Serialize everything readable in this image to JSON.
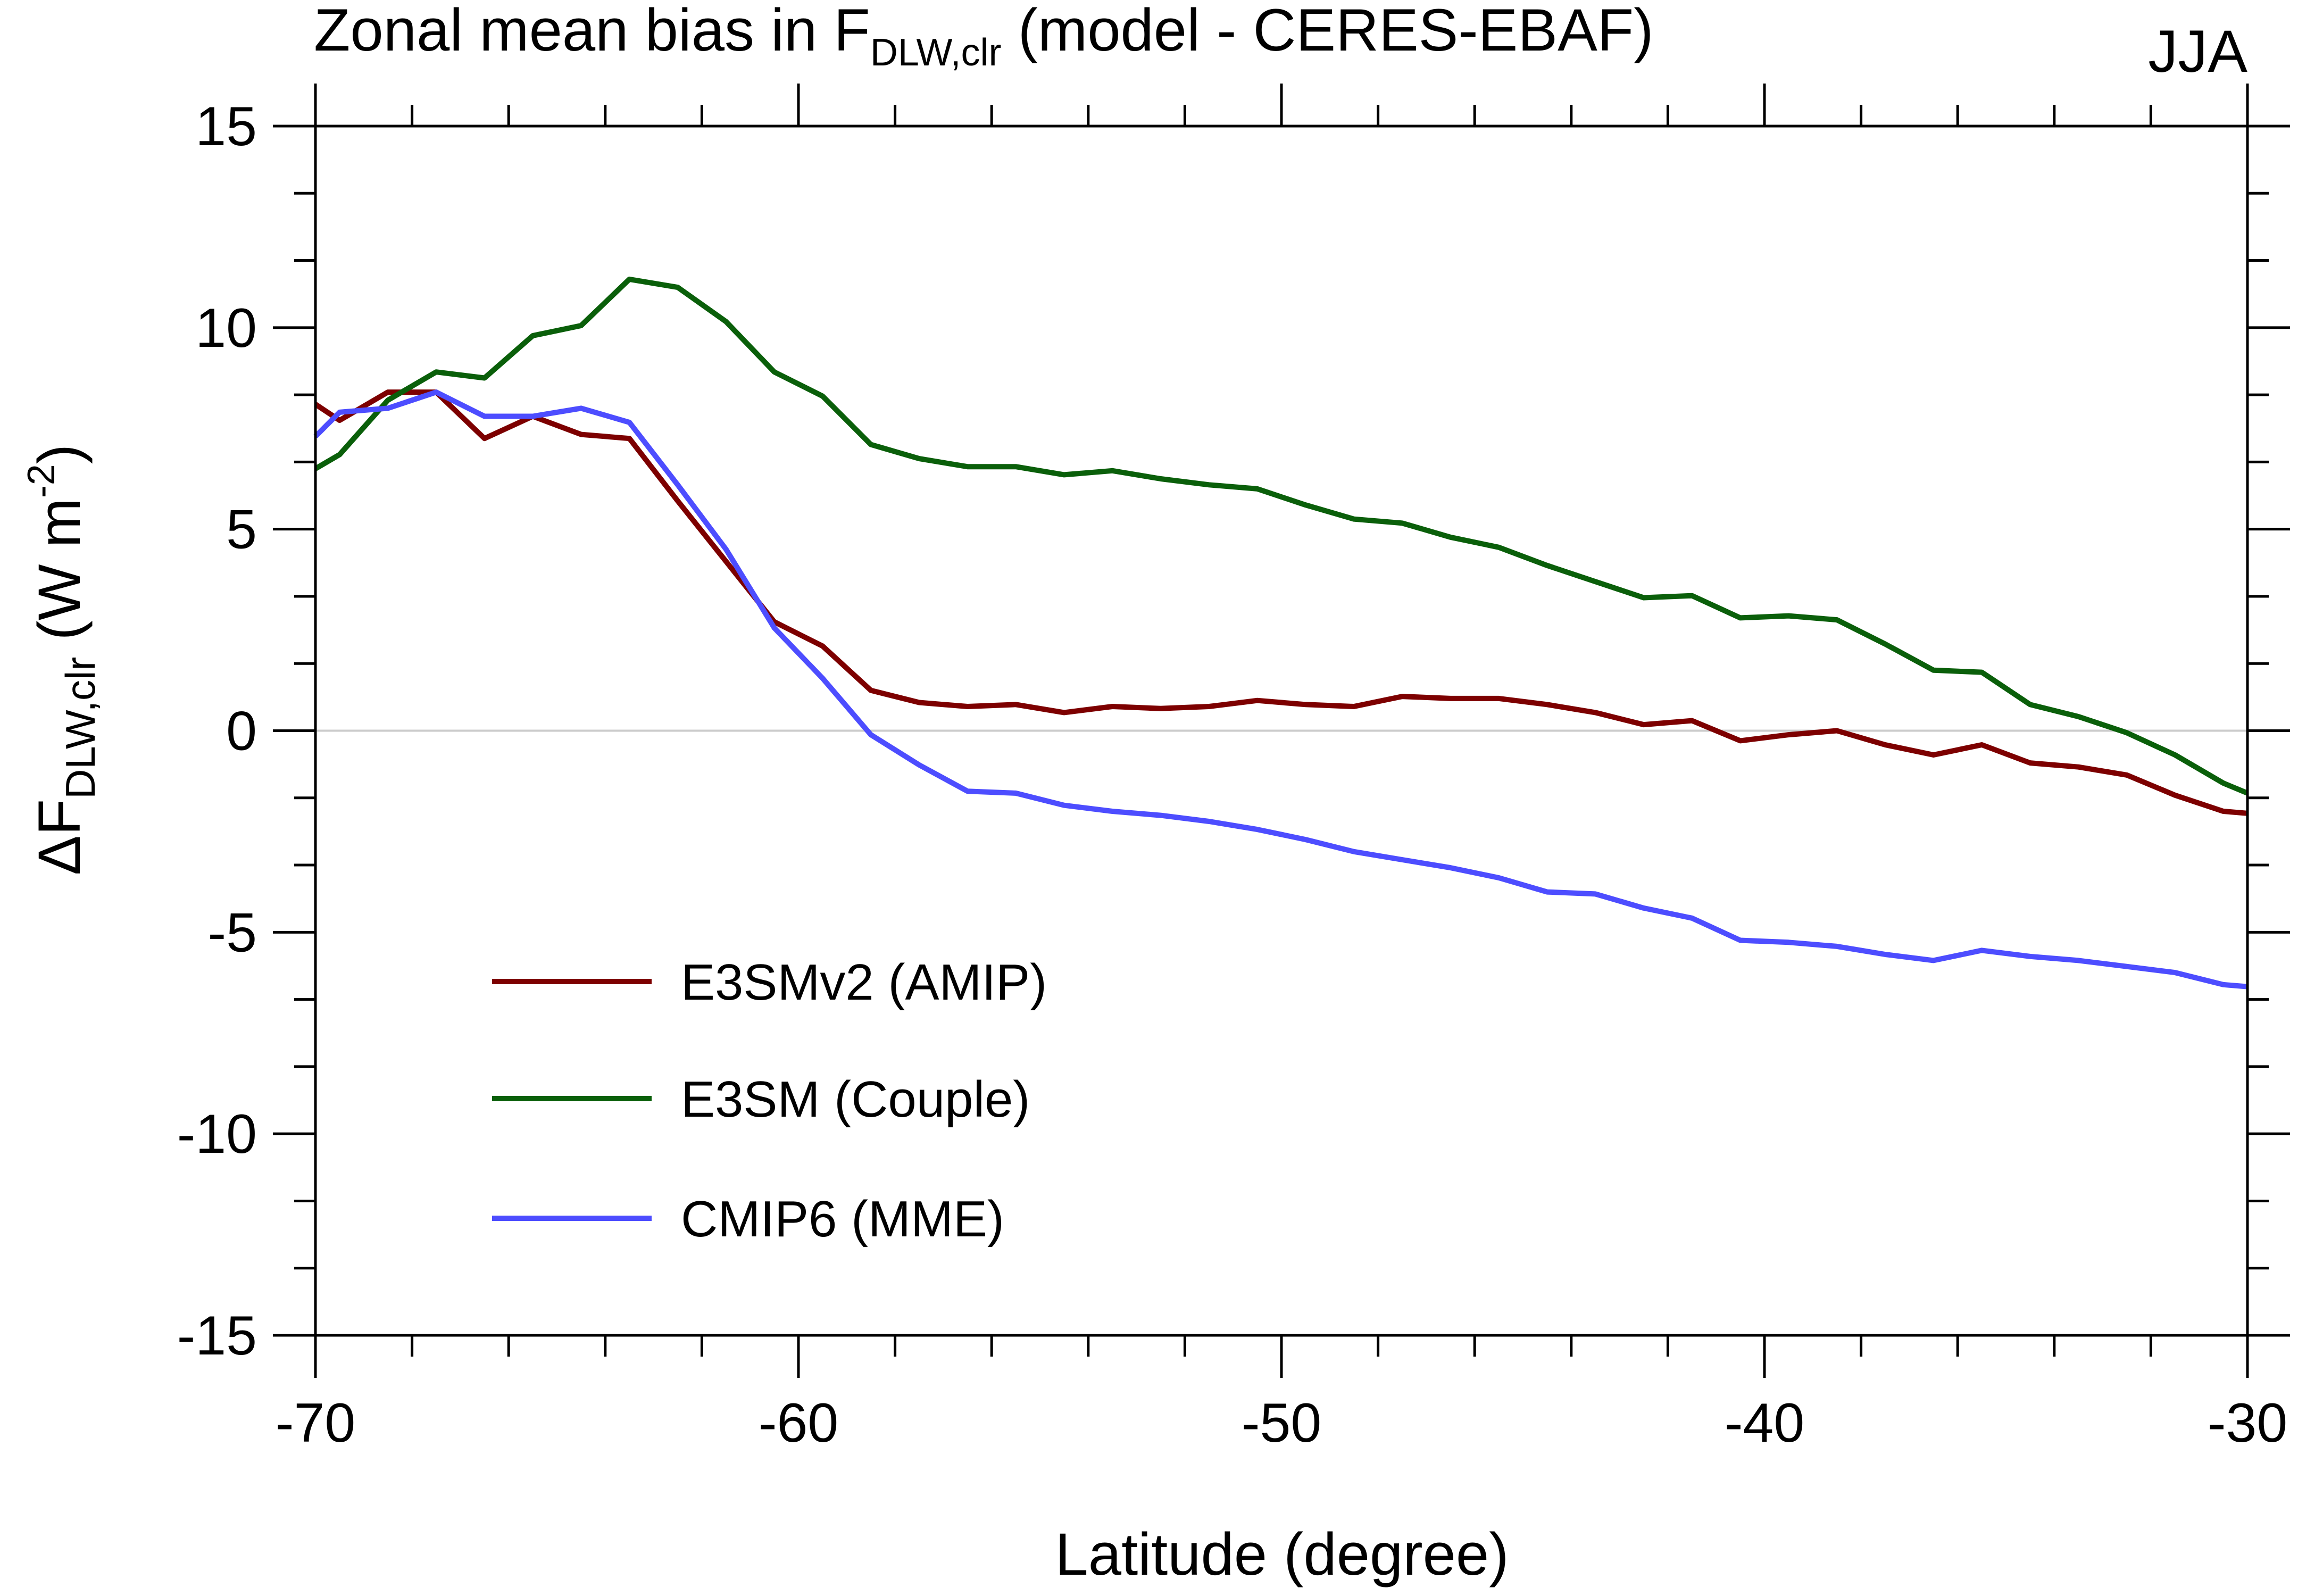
{
  "chart_data": {
    "type": "line",
    "title": {
      "prefix": "Zonal mean bias in F",
      "subscript": "DLW,clr",
      "suffix": " (model - CERES-EBAF)"
    },
    "season_label": "JJA",
    "xlabel": "Latitude (degree)",
    "ylabel": {
      "prefix": "ΔF",
      "subscript": "DLW,clr",
      "unit_start": " (W m",
      "unit_exp": "-2",
      "unit_end": ")"
    },
    "xlim": [
      -70,
      -30
    ],
    "ylim": [
      -15,
      15
    ],
    "xticks": [
      -70,
      -60,
      -50,
      -40,
      -30
    ],
    "yticks": [
      -15,
      -10,
      -5,
      0,
      5,
      10,
      15
    ],
    "xtick_labels": [
      "-70",
      "-60",
      "-50",
      "-40",
      "-30"
    ],
    "ytick_labels": [
      "-15",
      "-10",
      "-5",
      "0",
      "5",
      "10",
      "15"
    ],
    "x": [
      -70,
      -69.5,
      -68.5,
      -67.5,
      -66.5,
      -65.5,
      -64.5,
      -63.5,
      -62.5,
      -61.5,
      -60.5,
      -59.5,
      -58.5,
      -57.5,
      -56.5,
      -55.5,
      -54.5,
      -53.5,
      -52.5,
      -51.5,
      -50.5,
      -49.5,
      -48.5,
      -47.5,
      -46.5,
      -45.5,
      -44.5,
      -43.5,
      -42.5,
      -41.5,
      -40.5,
      -39.5,
      -38.5,
      -37.5,
      -36.5,
      -35.5,
      -34.5,
      -33.5,
      -32.5,
      -31.5,
      -30.5,
      -30
    ],
    "series": [
      {
        "name": "E3SMv2 (AMIP)",
        "color": "#7d0000",
        "values": [
          8.1,
          7.7,
          8.4,
          8.4,
          7.25,
          7.8,
          7.35,
          7.25,
          5.7,
          4.2,
          2.7,
          2.1,
          1.0,
          0.7,
          0.6,
          0.65,
          0.45,
          0.6,
          0.55,
          0.6,
          0.75,
          0.65,
          0.6,
          0.85,
          0.8,
          0.8,
          0.65,
          0.45,
          0.15,
          0.25,
          -0.25,
          -0.1,
          0.0,
          -0.35,
          -0.6,
          -0.35,
          -0.8,
          -0.9,
          -1.1,
          -1.6,
          -2.0,
          -2.05
        ]
      },
      {
        "name": "E3SM (Couple)",
        "color": "#0a5f0a",
        "values": [
          6.5,
          6.85,
          8.2,
          8.9,
          8.75,
          9.8,
          10.05,
          11.2,
          11.0,
          10.15,
          8.9,
          8.3,
          7.1,
          6.75,
          6.55,
          6.55,
          6.35,
          6.45,
          6.25,
          6.1,
          6.0,
          5.6,
          5.25,
          5.15,
          4.8,
          4.55,
          4.1,
          3.7,
          3.3,
          3.35,
          2.8,
          2.85,
          2.75,
          2.15,
          1.5,
          1.45,
          0.65,
          0.35,
          -0.05,
          -0.6,
          -1.3,
          -1.55
        ]
      },
      {
        "name": "CMIP6 (MME)",
        "color": "#4d4dff",
        "values": [
          7.3,
          7.9,
          8.0,
          8.4,
          7.8,
          7.8,
          8.0,
          7.65,
          6.1,
          4.5,
          2.55,
          1.3,
          -0.1,
          -0.85,
          -1.5,
          -1.55,
          -1.85,
          -2.0,
          -2.1,
          -2.25,
          -2.45,
          -2.7,
          -3.0,
          -3.2,
          -3.4,
          -3.65,
          -4.0,
          -4.05,
          -4.4,
          -4.65,
          -5.2,
          -5.25,
          -5.35,
          -5.55,
          -5.7,
          -5.45,
          -5.6,
          -5.7,
          -5.85,
          -6.0,
          -6.3,
          -6.35
        ]
      }
    ],
    "legend_position": "lower-left",
    "grid": false,
    "reference_line_y": 0
  }
}
